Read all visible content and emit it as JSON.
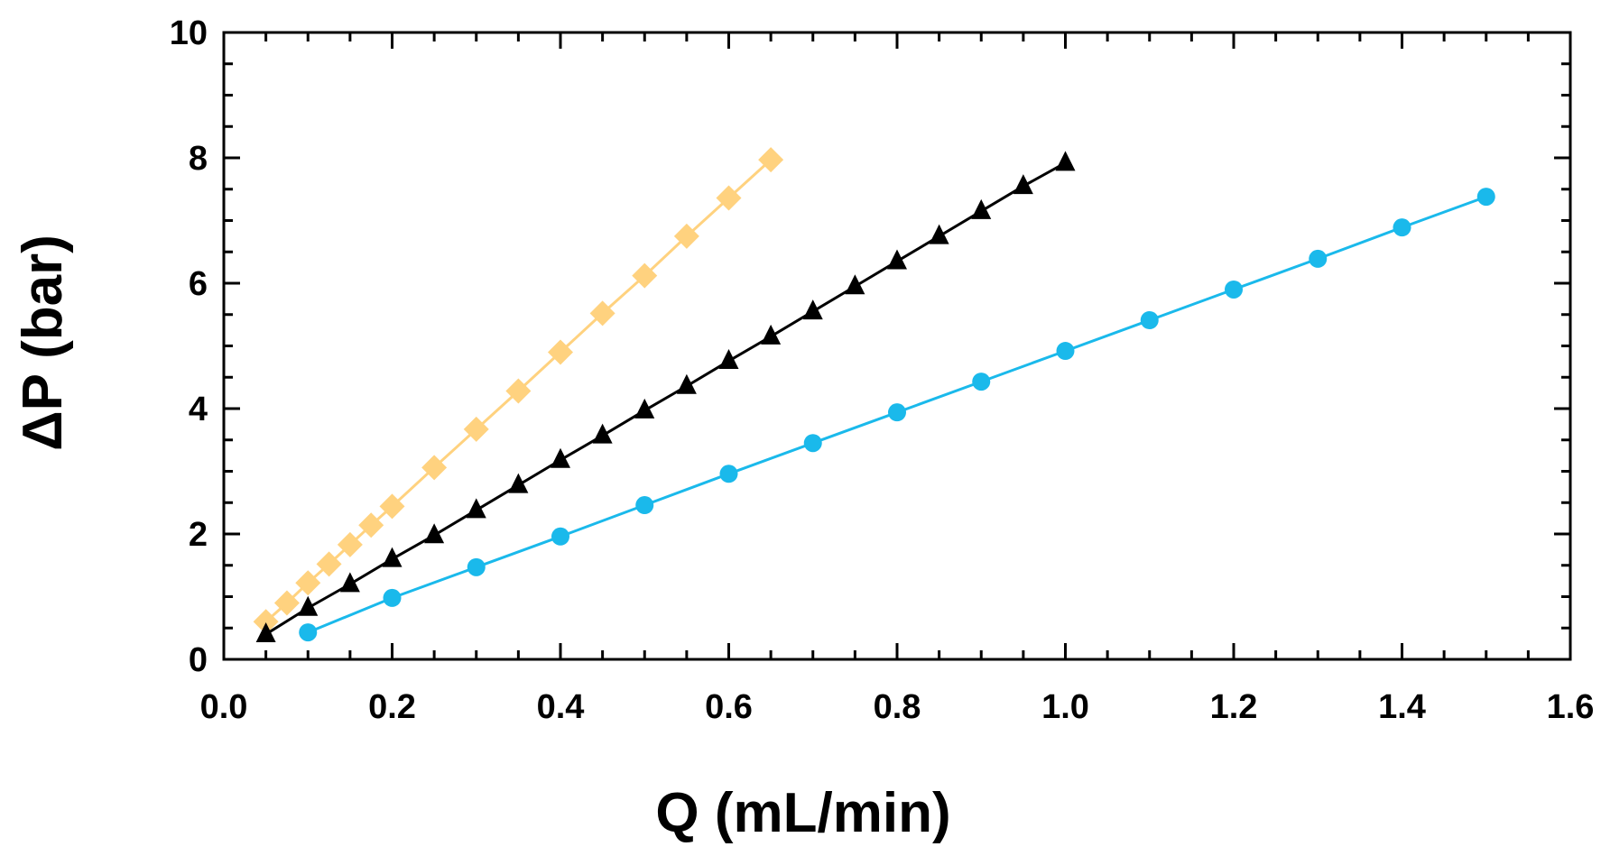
{
  "chart_data": {
    "type": "line",
    "title": "",
    "xlabel": "Q (mL/min)",
    "ylabel": "ΔP (bar)",
    "xlim": [
      0,
      1.6
    ],
    "ylim": [
      0,
      10
    ],
    "x_ticks": [
      "0.0",
      "0.2",
      "0.4",
      "0.6",
      "0.8",
      "1.0",
      "1.2",
      "1.4",
      "1.6"
    ],
    "y_ticks": [
      "0",
      "2",
      "4",
      "6",
      "8",
      "10"
    ],
    "grid": false,
    "series": [
      {
        "name": "diamond series",
        "color": "#FFD27F",
        "marker": "diamond",
        "x": [
          0.05,
          0.075,
          0.1,
          0.125,
          0.15,
          0.175,
          0.2,
          0.25,
          0.3,
          0.35,
          0.4,
          0.45,
          0.5,
          0.55,
          0.6,
          0.65
        ],
        "y": [
          0.6,
          0.9,
          1.22,
          1.52,
          1.83,
          2.14,
          2.44,
          3.06,
          3.67,
          4.28,
          4.9,
          5.52,
          6.12,
          6.75,
          7.36,
          7.97
        ]
      },
      {
        "name": "triangle series",
        "color": "#000000",
        "marker": "triangle",
        "x": [
          0.05,
          0.1,
          0.15,
          0.2,
          0.25,
          0.3,
          0.35,
          0.4,
          0.45,
          0.5,
          0.55,
          0.6,
          0.65,
          0.7,
          0.75,
          0.8,
          0.85,
          0.9,
          0.95,
          1.0
        ],
        "y": [
          0.4,
          0.82,
          1.2,
          1.6,
          1.98,
          2.38,
          2.78,
          3.18,
          3.57,
          3.97,
          4.36,
          4.76,
          5.15,
          5.55,
          5.95,
          6.35,
          6.75,
          7.15,
          7.55,
          7.92
        ]
      },
      {
        "name": "circle series",
        "color": "#1AB9EB",
        "marker": "circle",
        "x": [
          0.1,
          0.2,
          0.3,
          0.4,
          0.5,
          0.6,
          0.7,
          0.8,
          0.9,
          1.0,
          1.1,
          1.2,
          1.3,
          1.4,
          1.5
        ],
        "y": [
          0.43,
          0.98,
          1.47,
          1.96,
          2.46,
          2.96,
          3.45,
          3.94,
          4.43,
          4.92,
          5.41,
          5.9,
          6.39,
          6.89,
          7.38
        ]
      }
    ]
  }
}
